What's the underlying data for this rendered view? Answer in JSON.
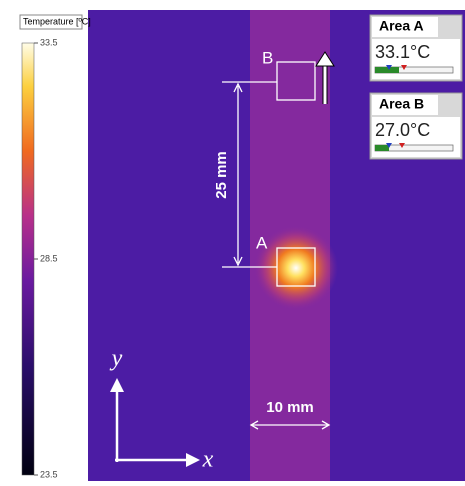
{
  "colorbar": {
    "title": "Temperature [ºC]",
    "range": [
      23.5,
      33.5
    ],
    "ticks": [
      23.5,
      28.5,
      33.5
    ]
  },
  "markers": {
    "a": "A",
    "b": "B"
  },
  "dimensions": {
    "vertical": "25 mm",
    "horizontal": "10 mm"
  },
  "axes": {
    "x": "x",
    "y": "y"
  },
  "areas": [
    {
      "title": "Area A",
      "value": "33.1°C"
    },
    {
      "title": "Area B",
      "value": "27.0°C"
    }
  ]
}
